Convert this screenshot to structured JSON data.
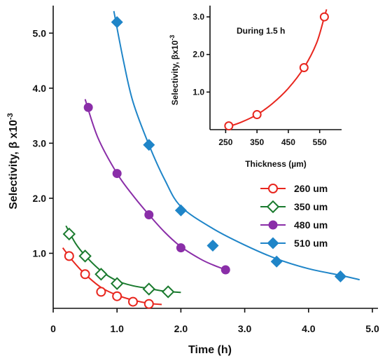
{
  "chart_data": [
    {
      "type": "line",
      "xlabel": "Time (h)",
      "ylabel": "Selectivity, β x10",
      "ylabel_exponent": "-3",
      "xlim": [
        0,
        5.0
      ],
      "ylim": [
        0,
        5.5
      ],
      "x_ticks": [
        "0",
        "1.0",
        "2.0",
        "3.0",
        "4.0",
        "5.0"
      ],
      "y_ticks": [
        "1.0",
        "2.0",
        "3.0",
        "4.0",
        "5.0"
      ],
      "x_tick_values": [
        0,
        1.0,
        2.0,
        3.0,
        4.0,
        5.0
      ],
      "y_tick_values": [
        1.0,
        2.0,
        3.0,
        4.0,
        5.0
      ],
      "legend_position": "right",
      "series": [
        {
          "name": "260 um",
          "color": "#e8261e",
          "marker": "circle-open",
          "points": [
            [
              0.25,
              0.95
            ],
            [
              0.5,
              0.62
            ],
            [
              0.75,
              0.3
            ],
            [
              1.0,
              0.22
            ],
            [
              1.25,
              0.12
            ],
            [
              1.5,
              0.08
            ]
          ],
          "curve": [
            [
              0.15,
              1.1
            ],
            [
              0.3,
              0.87
            ],
            [
              0.5,
              0.62
            ],
            [
              0.75,
              0.38
            ],
            [
              1.0,
              0.24
            ],
            [
              1.25,
              0.15
            ],
            [
              1.5,
              0.09
            ],
            [
              1.7,
              0.07
            ]
          ]
        },
        {
          "name": "350 um",
          "color": "#1a7a2e",
          "marker": "diamond-open",
          "points": [
            [
              0.25,
              1.35
            ],
            [
              0.5,
              0.95
            ],
            [
              0.75,
              0.62
            ],
            [
              1.0,
              0.45
            ],
            [
              1.5,
              0.35
            ],
            [
              1.8,
              0.3
            ]
          ],
          "curve": [
            [
              0.2,
              1.5
            ],
            [
              0.35,
              1.18
            ],
            [
              0.5,
              0.96
            ],
            [
              0.75,
              0.68
            ],
            [
              1.0,
              0.5
            ],
            [
              1.25,
              0.41
            ],
            [
              1.5,
              0.36
            ],
            [
              1.75,
              0.31
            ],
            [
              2.0,
              0.29
            ]
          ]
        },
        {
          "name": "480 um",
          "color": "#8a2ea8",
          "marker": "circle-filled",
          "points": [
            [
              0.55,
              3.65
            ],
            [
              1.0,
              2.45
            ],
            [
              1.5,
              1.7
            ],
            [
              2.0,
              1.1
            ],
            [
              2.7,
              0.7
            ]
          ],
          "curve": [
            [
              0.5,
              3.8
            ],
            [
              0.7,
              3.1
            ],
            [
              1.0,
              2.45
            ],
            [
              1.25,
              2.05
            ],
            [
              1.5,
              1.7
            ],
            [
              1.75,
              1.38
            ],
            [
              2.0,
              1.12
            ],
            [
              2.3,
              0.9
            ],
            [
              2.5,
              0.79
            ],
            [
              2.75,
              0.68
            ]
          ]
        },
        {
          "name": "510 um",
          "color": "#1f85c8",
          "marker": "diamond-filled",
          "points": [
            [
              1.0,
              5.2
            ],
            [
              1.5,
              2.97
            ],
            [
              2.0,
              1.78
            ],
            [
              2.5,
              1.14
            ],
            [
              3.5,
              0.85
            ],
            [
              4.5,
              0.58
            ]
          ],
          "curve": [
            [
              0.95,
              5.4
            ],
            [
              1.1,
              4.5
            ],
            [
              1.25,
              3.75
            ],
            [
              1.5,
              2.97
            ],
            [
              1.75,
              2.33
            ],
            [
              2.0,
              1.85
            ],
            [
              2.5,
              1.45
            ],
            [
              3.0,
              1.15
            ],
            [
              3.5,
              0.9
            ],
            [
              4.0,
              0.72
            ],
            [
              4.5,
              0.6
            ],
            [
              4.8,
              0.52
            ]
          ]
        }
      ]
    },
    {
      "type": "line",
      "title": "During 1.5 h",
      "xlabel": "Thickness (µm)",
      "ylabel": "Selectivity, βx10",
      "ylabel_exponent": "-3",
      "xlim": [
        200,
        620
      ],
      "ylim": [
        0,
        3.3
      ],
      "x_ticks": [
        "250",
        "350",
        "450",
        "550"
      ],
      "y_ticks": [
        "1.0",
        "2.0",
        "3.0"
      ],
      "x_tick_values": [
        250,
        350,
        450,
        550
      ],
      "y_tick_values": [
        1.0,
        2.0,
        3.0
      ],
      "series": [
        {
          "color": "#e8261e",
          "marker": "circle-open",
          "points": [
            [
              260,
              0.1
            ],
            [
              350,
              0.4
            ],
            [
              500,
              1.65
            ],
            [
              565,
              3.0
            ]
          ],
          "curve": [
            [
              255,
              0.07
            ],
            [
              300,
              0.2
            ],
            [
              350,
              0.4
            ],
            [
              400,
              0.7
            ],
            [
              450,
              1.1
            ],
            [
              500,
              1.65
            ],
            [
              540,
              2.3
            ],
            [
              565,
              3.0
            ],
            [
              572,
              3.2
            ]
          ]
        }
      ]
    }
  ]
}
